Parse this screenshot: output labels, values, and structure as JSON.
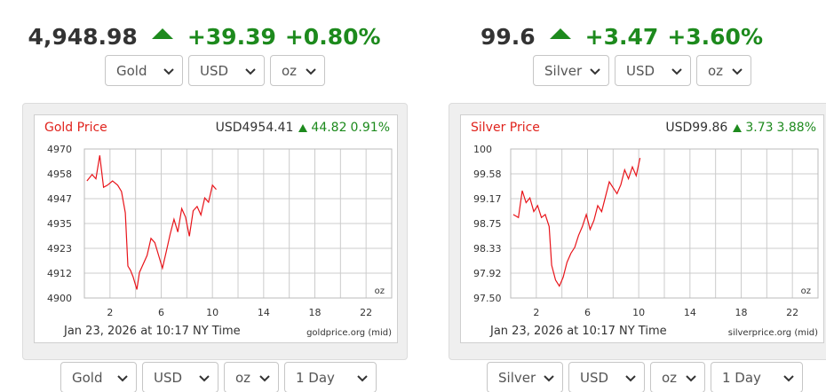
{
  "widgets": [
    {
      "headline": {
        "price": "4,948.98",
        "change": "+39.39",
        "pct": "+0.80%"
      },
      "top_selects": {
        "metal": "Gold",
        "currency": "USD",
        "unit": "oz"
      },
      "chart": {
        "title": "Gold Price",
        "quote_price": "USD4954.41",
        "quote_change": "44.82",
        "quote_pct": "0.91%",
        "timestamp": "Jan 23, 2026 at 10:17 NY Time",
        "source": "goldprice.org (mid)",
        "unit_label": "oz"
      },
      "bottom_selects": {
        "metal": "Gold",
        "currency": "USD",
        "unit": "oz",
        "range": "1 Day"
      }
    },
    {
      "headline": {
        "price": "99.6",
        "change": "+3.47",
        "pct": "+3.60%"
      },
      "top_selects": {
        "metal": "Silver",
        "currency": "USD",
        "unit": "oz"
      },
      "chart": {
        "title": "Silver Price",
        "quote_price": "USD99.86",
        "quote_change": "3.73",
        "quote_pct": "3.88%",
        "timestamp": "Jan 23, 2026 at 10:17 NY Time",
        "source": "silverprice.org (mid)",
        "unit_label": "oz"
      },
      "bottom_selects": {
        "metal": "Silver",
        "currency": "USD",
        "unit": "oz",
        "range": "1 Day"
      }
    }
  ],
  "colors": {
    "up": "#1d8a1d",
    "title": "#e0231d",
    "line": "#e8141a",
    "grid": "#cccccc"
  },
  "chart_data": [
    {
      "type": "line",
      "title": "Gold Price",
      "xlabel": "",
      "ylabel": "",
      "xlim": [
        0,
        24
      ],
      "ylim": [
        4900,
        4970
      ],
      "xticks": [
        "2",
        "6",
        "10",
        "14",
        "18",
        "22"
      ],
      "yticks": [
        "4970",
        "4958",
        "4947",
        "4935",
        "4923",
        "4912",
        "4900"
      ],
      "grid": true,
      "series": [
        {
          "x": [
            0.2,
            0.6,
            0.9,
            1.2,
            1.5,
            1.8,
            2.2,
            2.6,
            2.9,
            3.2,
            3.4,
            3.6,
            3.8,
            4.1,
            4.3,
            4.6,
            4.9,
            5.2,
            5.5,
            5.8,
            6.1,
            6.4,
            6.7,
            7.0,
            7.3,
            7.6,
            7.9,
            8.2,
            8.5,
            8.8,
            9.1,
            9.4,
            9.7,
            10.0,
            10.3
          ],
          "values": [
            4955,
            4958,
            4956,
            4967,
            4952,
            4953,
            4955,
            4953,
            4950,
            4940,
            4915,
            4913,
            4910,
            4904,
            4912,
            4916,
            4920,
            4928,
            4926,
            4920,
            4914,
            4922,
            4930,
            4937,
            4931,
            4942,
            4938,
            4929,
            4941,
            4943,
            4939,
            4947,
            4945,
            4953,
            4951
          ]
        }
      ]
    },
    {
      "type": "line",
      "title": "Silver Price",
      "xlabel": "",
      "ylabel": "",
      "xlim": [
        0,
        24
      ],
      "ylim": [
        97.5,
        100
      ],
      "xticks": [
        "2",
        "6",
        "10",
        "14",
        "18",
        "22"
      ],
      "yticks": [
        "100",
        "99.58",
        "99.17",
        "98.75",
        "98.33",
        "97.92",
        "97.50"
      ],
      "grid": true,
      "series": [
        {
          "x": [
            0.2,
            0.6,
            0.9,
            1.2,
            1.5,
            1.8,
            2.1,
            2.4,
            2.7,
            3.0,
            3.2,
            3.5,
            3.8,
            4.1,
            4.4,
            4.7,
            5.0,
            5.3,
            5.6,
            5.9,
            6.2,
            6.5,
            6.8,
            7.1,
            7.4,
            7.7,
            8.0,
            8.3,
            8.6,
            8.9,
            9.2,
            9.5,
            9.8,
            10.1
          ],
          "values": [
            98.9,
            98.85,
            99.3,
            99.1,
            99.18,
            98.95,
            99.05,
            98.85,
            98.9,
            98.7,
            98.05,
            97.8,
            97.7,
            97.85,
            98.1,
            98.25,
            98.35,
            98.55,
            98.7,
            98.9,
            98.65,
            98.8,
            99.05,
            98.95,
            99.2,
            99.45,
            99.35,
            99.25,
            99.4,
            99.65,
            99.5,
            99.7,
            99.55,
            99.85
          ]
        }
      ]
    }
  ]
}
